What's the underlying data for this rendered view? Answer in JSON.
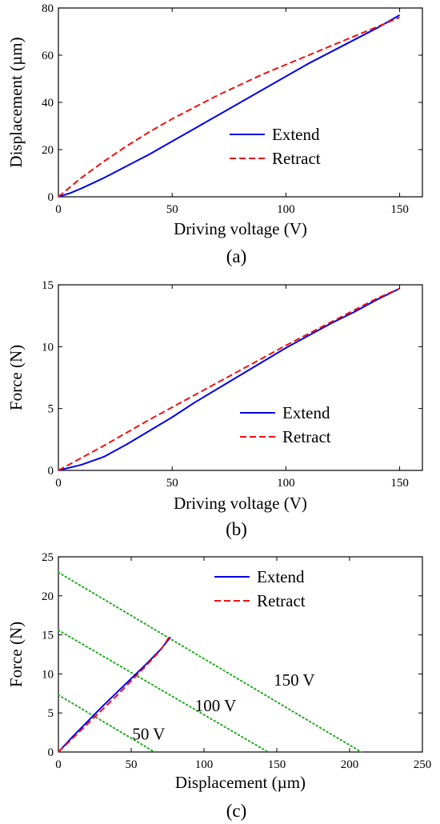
{
  "figure": {
    "panels": [
      {
        "caption": "(a)"
      },
      {
        "caption": "(b)"
      },
      {
        "caption": "(c)"
      }
    ]
  },
  "chart_data": [
    {
      "type": "line",
      "xlabel": "Driving voltage (V)",
      "ylabel": "Displacement (µm)",
      "xlim": [
        0,
        160
      ],
      "ylim": [
        0,
        80
      ],
      "xticks": [
        0,
        50,
        100,
        150
      ],
      "yticks": [
        0,
        20,
        40,
        60,
        80
      ],
      "grid": false,
      "legend": "center-right",
      "colors": {
        "Extend": "#0000ee",
        "Retract": "#ee1111"
      },
      "series": [
        {
          "name": "Extend",
          "style": "solid",
          "x": [
            0,
            5,
            10,
            20,
            30,
            40,
            50,
            60,
            70,
            80,
            90,
            100,
            110,
            120,
            130,
            140,
            150
          ],
          "y": [
            0,
            1.5,
            3.5,
            8,
            13,
            18,
            23.5,
            29,
            34.5,
            40,
            45.5,
            51,
            56.5,
            61.5,
            66.5,
            71.5,
            77
          ]
        },
        {
          "name": "Retract",
          "style": "dashed",
          "x": [
            0,
            5,
            10,
            20,
            30,
            40,
            50,
            60,
            70,
            80,
            90,
            100,
            110,
            120,
            130,
            140,
            150
          ],
          "y": [
            0,
            4,
            8,
            15,
            21.5,
            27.5,
            33,
            38,
            43,
            47.5,
            52,
            56,
            60,
            64,
            68,
            72,
            76
          ]
        }
      ]
    },
    {
      "type": "line",
      "xlabel": "Driving voltage (V)",
      "ylabel": "Force (N)",
      "xlim": [
        0,
        160
      ],
      "ylim": [
        0,
        15
      ],
      "xticks": [
        0,
        50,
        100,
        150
      ],
      "yticks": [
        0,
        5,
        10,
        15
      ],
      "grid": false,
      "legend": "center-right",
      "colors": {
        "Extend": "#0000ee",
        "Retract": "#ee1111"
      },
      "series": [
        {
          "name": "Extend",
          "style": "solid",
          "x": [
            0,
            10,
            20,
            30,
            40,
            50,
            60,
            70,
            80,
            90,
            100,
            110,
            120,
            130,
            140,
            150
          ],
          "y": [
            0,
            0.45,
            1.1,
            2.1,
            3.2,
            4.3,
            5.5,
            6.6,
            7.7,
            8.8,
            9.9,
            10.9,
            11.9,
            12.8,
            13.8,
            14.7
          ]
        },
        {
          "name": "Retract",
          "style": "dashed",
          "x": [
            0,
            10,
            20,
            30,
            40,
            50,
            60,
            70,
            80,
            90,
            100,
            110,
            120,
            130,
            140,
            150
          ],
          "y": [
            0,
            1.0,
            2.0,
            3.05,
            4.1,
            5.1,
            6.1,
            7.1,
            8.1,
            9.1,
            10.1,
            11.05,
            12.0,
            12.95,
            13.9,
            14.7
          ]
        }
      ]
    },
    {
      "type": "line",
      "xlabel": "Displacement (µm)",
      "ylabel": "Force (N)",
      "xlim": [
        0,
        250
      ],
      "ylim": [
        0,
        25
      ],
      "xticks": [
        0,
        50,
        100,
        150,
        200,
        250
      ],
      "yticks": [
        0,
        5,
        10,
        15,
        20,
        25
      ],
      "grid": false,
      "legend": "top-center",
      "colors": {
        "Extend": "#0000ee",
        "Retract": "#ee1111",
        "load_lines": "#22aa22"
      },
      "series": [
        {
          "name": "Extend",
          "style": "solid",
          "x": [
            0,
            10,
            20,
            30,
            40,
            50,
            60,
            70,
            77
          ],
          "y": [
            0,
            2.0,
            3.9,
            5.8,
            7.6,
            9.4,
            11.2,
            13.1,
            14.7
          ]
        },
        {
          "name": "Retract",
          "style": "dashed",
          "x": [
            0,
            10,
            20,
            30,
            40,
            50,
            60,
            70,
            76
          ],
          "y": [
            0,
            1.8,
            3.6,
            5.4,
            7.2,
            9.1,
            11.0,
            13.0,
            14.7
          ]
        }
      ],
      "load_lines": [
        {
          "label": "50 V",
          "x": [
            0,
            66
          ],
          "y": [
            7.3,
            0
          ],
          "label_at": [
            62,
            1.6
          ]
        },
        {
          "label": "100 V",
          "x": [
            0,
            144
          ],
          "y": [
            15.6,
            0
          ],
          "label_at": [
            108,
            5.2
          ]
        },
        {
          "label": "150 V",
          "x": [
            0,
            208
          ],
          "y": [
            23.0,
            0
          ],
          "label_at": [
            162,
            8.5
          ]
        }
      ]
    }
  ]
}
